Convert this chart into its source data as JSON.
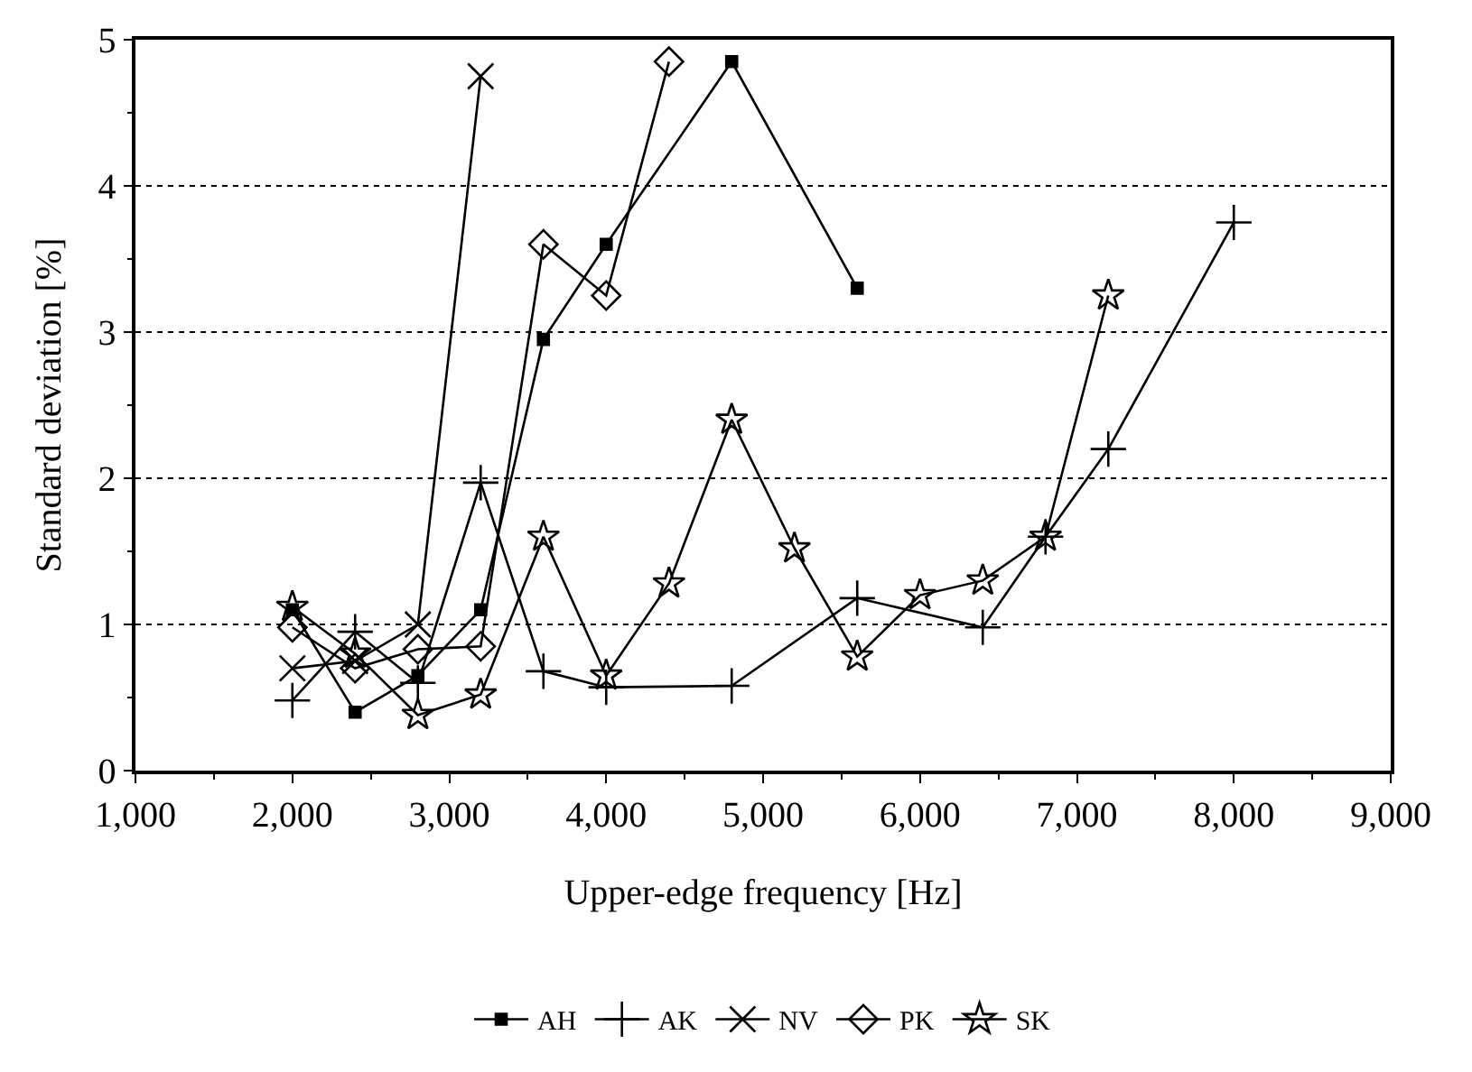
{
  "chart_data": {
    "type": "line",
    "xlabel": "Upper-edge frequency [Hz]",
    "ylabel": "Standard deviation [%]",
    "xlim": [
      1000,
      9000
    ],
    "xticks": [
      {
        "value": 1000,
        "label": "1,000"
      },
      {
        "value": 2000,
        "label": "2,000"
      },
      {
        "value": 3000,
        "label": "3,000"
      },
      {
        "value": 4000,
        "label": "4,000"
      },
      {
        "value": 5000,
        "label": "5,000"
      },
      {
        "value": 6000,
        "label": "6,000"
      },
      {
        "value": 7000,
        "label": "7,000"
      },
      {
        "value": 8000,
        "label": "8,000"
      },
      {
        "value": 9000,
        "label": "9,000"
      }
    ],
    "ylim": [
      0,
      5
    ],
    "yticks": [
      0,
      1,
      2,
      3,
      4,
      5
    ],
    "grid": "y",
    "legend": "bottom",
    "line_style": "solid",
    "series": [
      {
        "name": "AH",
        "color": "#000000",
        "marker": "square",
        "x": [
          2000,
          2400,
          2800,
          3200,
          3600,
          4000,
          4800,
          5600
        ],
        "values": [
          1.1,
          0.4,
          0.65,
          1.1,
          2.95,
          3.6,
          4.85,
          3.3
        ]
      },
      {
        "name": "AK",
        "color": "#000000",
        "marker": "cross",
        "x": [
          2000,
          2400,
          2800,
          3200,
          3600,
          4000,
          4800,
          5600,
          6400,
          6800,
          7200,
          8000
        ],
        "values": [
          0.48,
          0.95,
          0.6,
          1.97,
          0.68,
          0.57,
          0.58,
          1.18,
          0.98,
          1.6,
          2.2,
          3.75
        ]
      },
      {
        "name": "NV",
        "color": "#000000",
        "marker": "x",
        "x": [
          2000,
          2400,
          2800,
          3200
        ],
        "values": [
          0.7,
          0.75,
          1.0,
          4.75
        ]
      },
      {
        "name": "PK",
        "color": "#000000",
        "marker": "diamond",
        "x": [
          2000,
          2400,
          2800,
          3200,
          3600,
          4000,
          4400
        ],
        "values": [
          0.98,
          0.7,
          0.83,
          0.85,
          3.6,
          3.25,
          4.85
        ]
      },
      {
        "name": "SK",
        "color": "#000000",
        "marker": "star",
        "x": [
          2000,
          2400,
          2800,
          3200,
          3600,
          4000,
          4400,
          4800,
          5200,
          5600,
          6000,
          6400,
          6800,
          7200
        ],
        "values": [
          1.12,
          0.8,
          0.38,
          0.52,
          1.6,
          0.65,
          1.28,
          2.4,
          1.52,
          0.78,
          1.2,
          1.3,
          1.6,
          3.25
        ]
      }
    ]
  }
}
